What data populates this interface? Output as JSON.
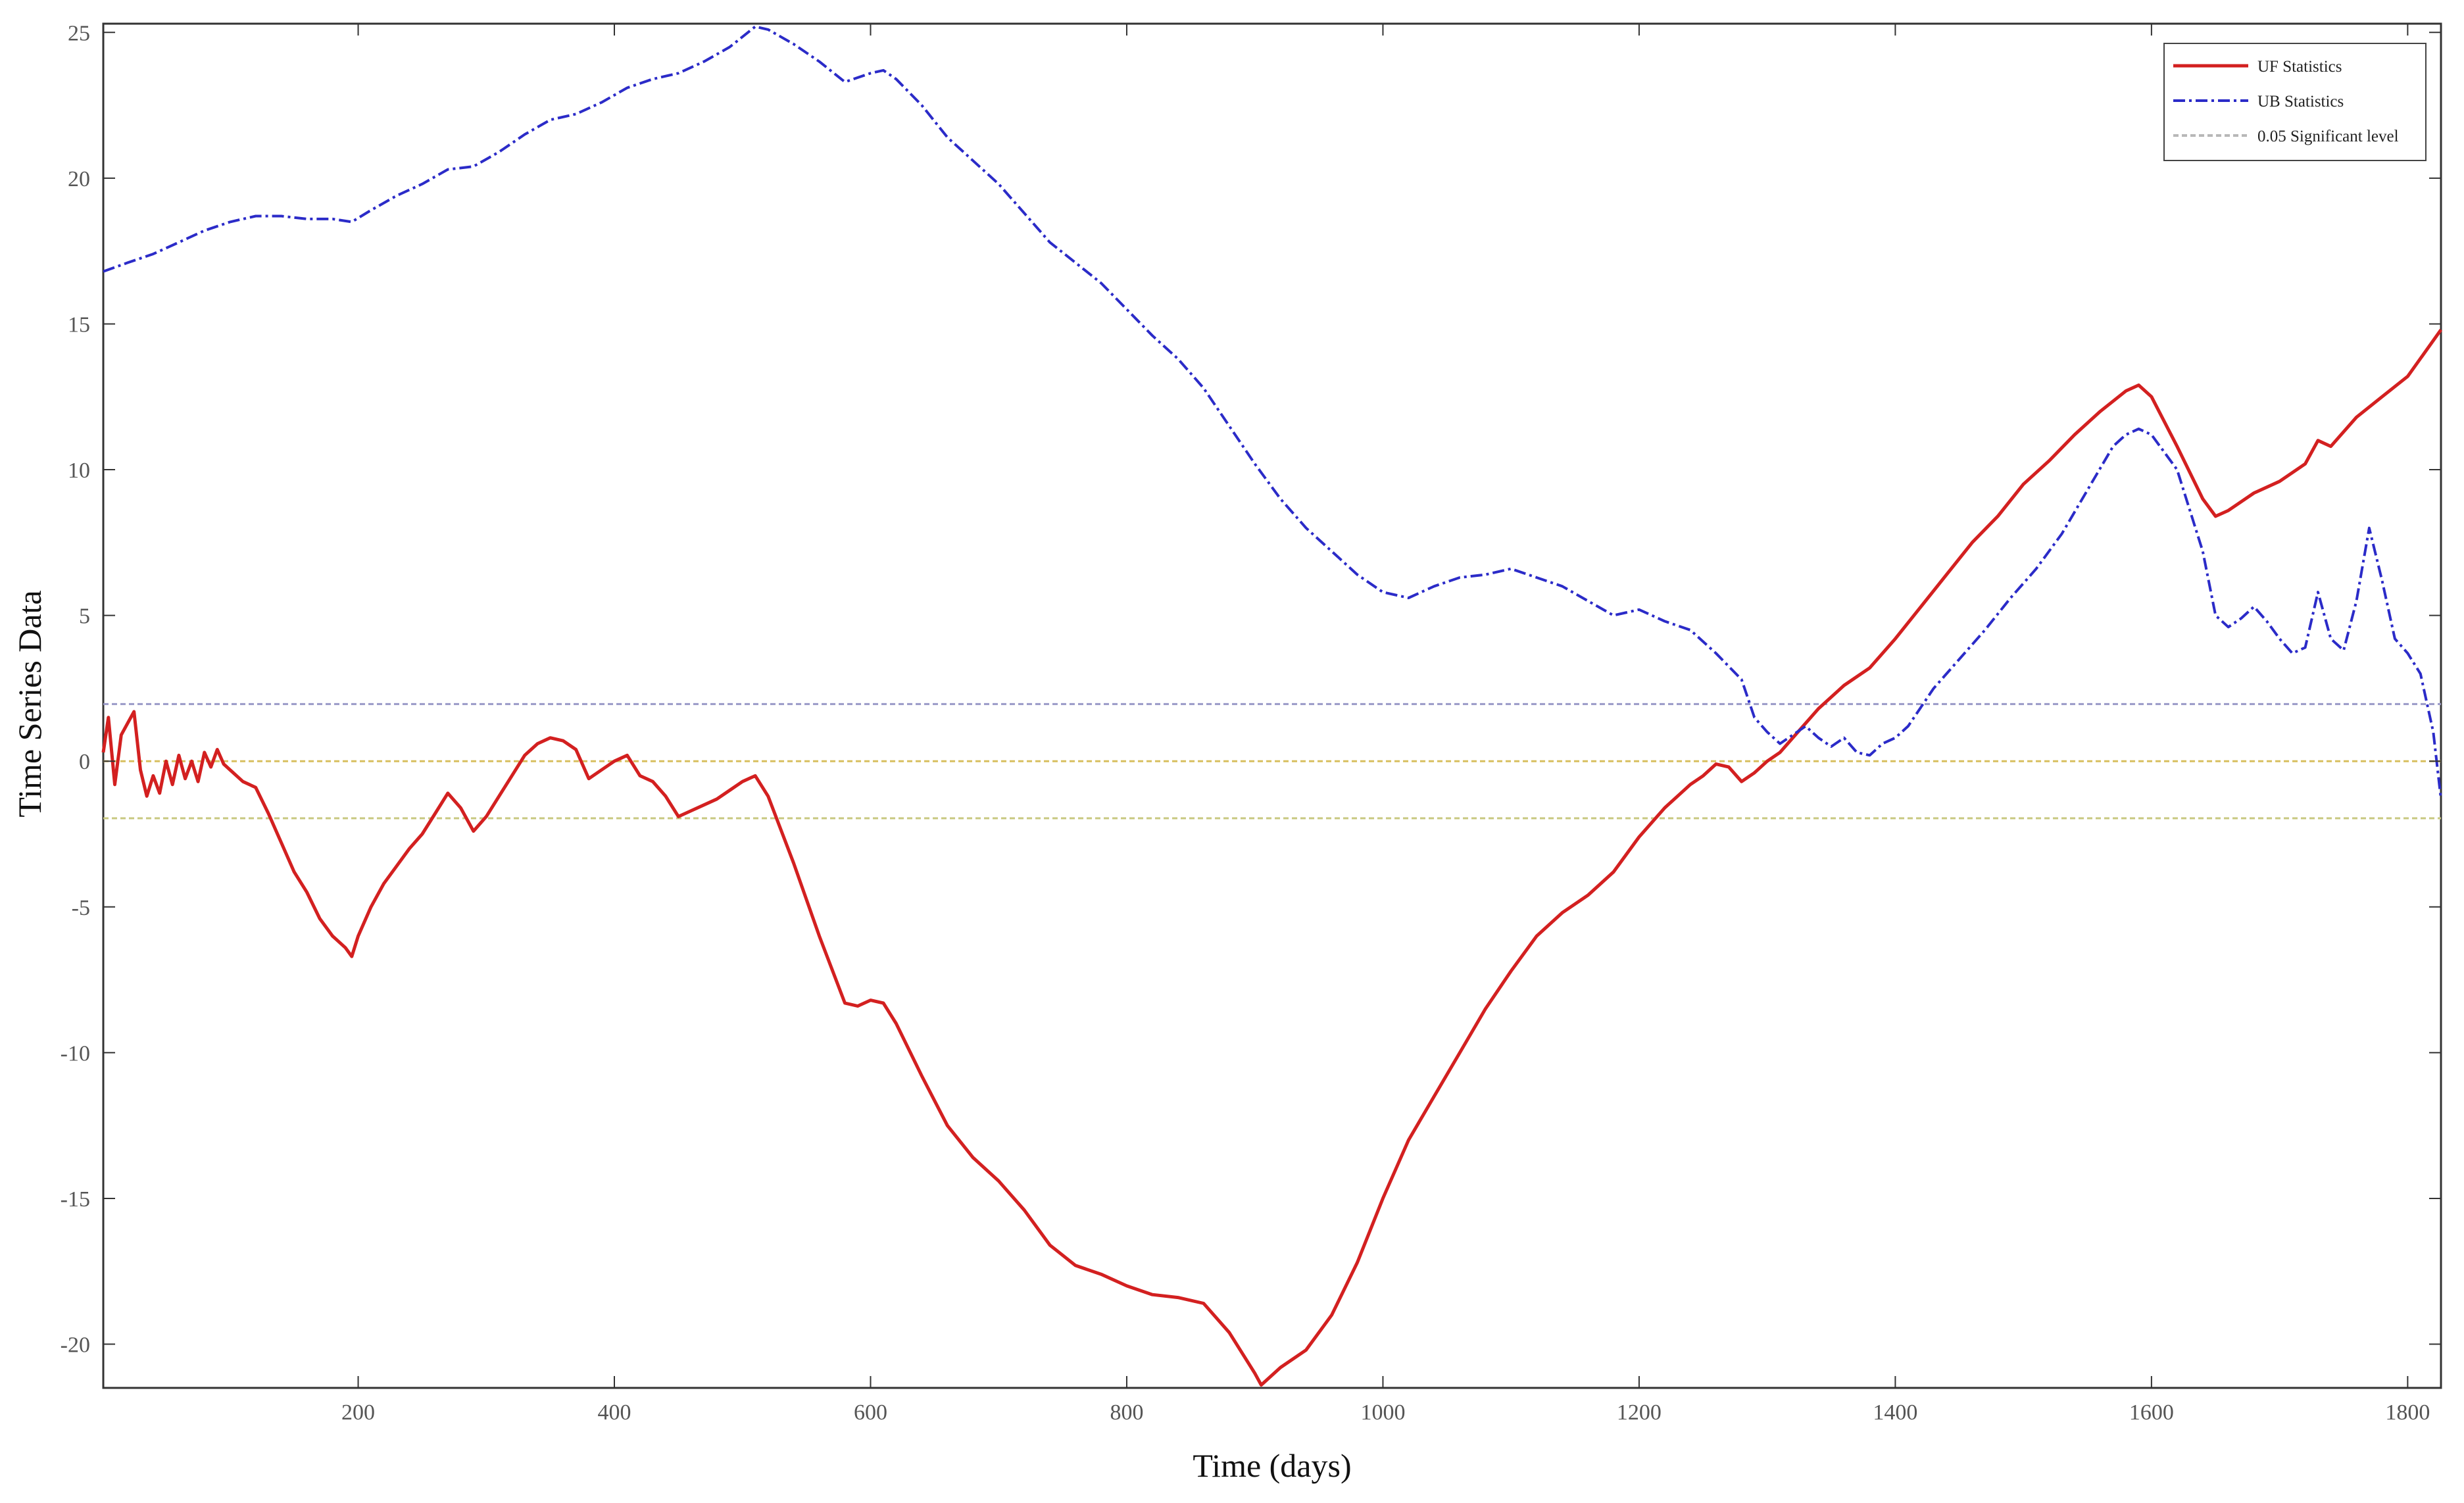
{
  "chart_data": {
    "type": "line",
    "title": "",
    "xlabel": "Time (days)",
    "ylabel": "Time Series Data",
    "xlim": [
      1,
      1826
    ],
    "ylim": [
      -21.5,
      25.3
    ],
    "x_ticks": [
      200,
      400,
      600,
      800,
      1000,
      1200,
      1400,
      1600,
      1800
    ],
    "y_ticks": [
      -20,
      -15,
      -10,
      -5,
      0,
      5,
      10,
      15,
      20,
      25
    ],
    "grid": false,
    "legend_position": "top-right",
    "reference_lines": [
      {
        "y": 1.96,
        "color": "#9a9ac8"
      },
      {
        "y": 0,
        "color": "#d8c060"
      },
      {
        "y": -1.96,
        "color": "#c8c880"
      }
    ],
    "series": [
      {
        "name": "UF Statistics",
        "color": "#d32020",
        "style": "solid",
        "points": [
          [
            1,
            0.3
          ],
          [
            5,
            1.5
          ],
          [
            10,
            -0.8
          ],
          [
            15,
            0.9
          ],
          [
            20,
            1.3
          ],
          [
            25,
            1.7
          ],
          [
            30,
            -0.3
          ],
          [
            35,
            -1.2
          ],
          [
            40,
            -0.5
          ],
          [
            45,
            -1.1
          ],
          [
            50,
            0
          ],
          [
            55,
            -0.8
          ],
          [
            60,
            0.2
          ],
          [
            65,
            -0.6
          ],
          [
            70,
            0
          ],
          [
            75,
            -0.7
          ],
          [
            80,
            0.3
          ],
          [
            85,
            -0.2
          ],
          [
            90,
            0.4
          ],
          [
            95,
            -0.1
          ],
          [
            100,
            -0.3
          ],
          [
            110,
            -0.7
          ],
          [
            120,
            -0.9
          ],
          [
            130,
            -1.8
          ],
          [
            140,
            -2.8
          ],
          [
            150,
            -3.8
          ],
          [
            160,
            -4.5
          ],
          [
            170,
            -5.4
          ],
          [
            180,
            -6.0
          ],
          [
            190,
            -6.4
          ],
          [
            195,
            -6.7
          ],
          [
            200,
            -6.0
          ],
          [
            210,
            -5.0
          ],
          [
            220,
            -4.2
          ],
          [
            230,
            -3.6
          ],
          [
            240,
            -3.0
          ],
          [
            250,
            -2.5
          ],
          [
            260,
            -1.8
          ],
          [
            270,
            -1.1
          ],
          [
            280,
            -1.6
          ],
          [
            290,
            -2.4
          ],
          [
            300,
            -1.9
          ],
          [
            310,
            -1.2
          ],
          [
            320,
            -0.5
          ],
          [
            330,
            0.2
          ],
          [
            340,
            0.6
          ],
          [
            350,
            0.8
          ],
          [
            360,
            0.7
          ],
          [
            370,
            0.4
          ],
          [
            380,
            -0.6
          ],
          [
            390,
            -0.3
          ],
          [
            400,
            0
          ],
          [
            410,
            0.2
          ],
          [
            420,
            -0.5
          ],
          [
            430,
            -0.7
          ],
          [
            440,
            -1.2
          ],
          [
            450,
            -1.9
          ],
          [
            460,
            -1.7
          ],
          [
            470,
            -1.5
          ],
          [
            480,
            -1.3
          ],
          [
            490,
            -1.0
          ],
          [
            500,
            -0.7
          ],
          [
            510,
            -0.5
          ],
          [
            520,
            -1.2
          ],
          [
            540,
            -3.5
          ],
          [
            560,
            -6.0
          ],
          [
            580,
            -8.3
          ],
          [
            590,
            -8.4
          ],
          [
            600,
            -8.2
          ],
          [
            610,
            -8.3
          ],
          [
            620,
            -9.0
          ],
          [
            640,
            -10.8
          ],
          [
            660,
            -12.5
          ],
          [
            680,
            -13.6
          ],
          [
            700,
            -14.4
          ],
          [
            720,
            -15.4
          ],
          [
            740,
            -16.6
          ],
          [
            760,
            -17.3
          ],
          [
            780,
            -17.6
          ],
          [
            800,
            -18.0
          ],
          [
            820,
            -18.3
          ],
          [
            840,
            -18.4
          ],
          [
            860,
            -18.6
          ],
          [
            880,
            -19.6
          ],
          [
            900,
            -21.0
          ],
          [
            905,
            -21.4
          ],
          [
            920,
            -20.8
          ],
          [
            940,
            -20.2
          ],
          [
            960,
            -19.0
          ],
          [
            980,
            -17.2
          ],
          [
            1000,
            -15.0
          ],
          [
            1020,
            -13.0
          ],
          [
            1040,
            -11.5
          ],
          [
            1060,
            -10.0
          ],
          [
            1080,
            -8.5
          ],
          [
            1100,
            -7.2
          ],
          [
            1120,
            -6.0
          ],
          [
            1140,
            -5.2
          ],
          [
            1160,
            -4.6
          ],
          [
            1180,
            -3.8
          ],
          [
            1200,
            -2.6
          ],
          [
            1220,
            -1.6
          ],
          [
            1240,
            -0.8
          ],
          [
            1250,
            -0.5
          ],
          [
            1260,
            -0.1
          ],
          [
            1270,
            -0.2
          ],
          [
            1280,
            -0.7
          ],
          [
            1290,
            -0.4
          ],
          [
            1300,
            0
          ],
          [
            1310,
            0.3
          ],
          [
            1320,
            0.8
          ],
          [
            1340,
            1.8
          ],
          [
            1360,
            2.6
          ],
          [
            1380,
            3.2
          ],
          [
            1400,
            4.2
          ],
          [
            1420,
            5.3
          ],
          [
            1440,
            6.4
          ],
          [
            1460,
            7.5
          ],
          [
            1480,
            8.4
          ],
          [
            1500,
            9.5
          ],
          [
            1520,
            10.3
          ],
          [
            1540,
            11.2
          ],
          [
            1560,
            12.0
          ],
          [
            1580,
            12.7
          ],
          [
            1590,
            12.9
          ],
          [
            1600,
            12.5
          ],
          [
            1620,
            10.8
          ],
          [
            1640,
            9.0
          ],
          [
            1650,
            8.4
          ],
          [
            1660,
            8.6
          ],
          [
            1680,
            9.2
          ],
          [
            1700,
            9.6
          ],
          [
            1720,
            10.2
          ],
          [
            1730,
            11.0
          ],
          [
            1740,
            10.8
          ],
          [
            1760,
            11.8
          ],
          [
            1780,
            12.5
          ],
          [
            1800,
            13.2
          ],
          [
            1826,
            14.8
          ]
        ]
      },
      {
        "name": "UB Statistics",
        "color": "#2b2bc8",
        "style": "dashdot",
        "points": [
          [
            1,
            16.8
          ],
          [
            20,
            17.1
          ],
          [
            40,
            17.4
          ],
          [
            60,
            17.8
          ],
          [
            80,
            18.2
          ],
          [
            100,
            18.5
          ],
          [
            120,
            18.7
          ],
          [
            140,
            18.7
          ],
          [
            160,
            18.6
          ],
          [
            180,
            18.6
          ],
          [
            195,
            18.5
          ],
          [
            210,
            18.9
          ],
          [
            230,
            19.4
          ],
          [
            250,
            19.8
          ],
          [
            270,
            20.3
          ],
          [
            290,
            20.4
          ],
          [
            310,
            20.9
          ],
          [
            330,
            21.5
          ],
          [
            350,
            22.0
          ],
          [
            370,
            22.2
          ],
          [
            390,
            22.6
          ],
          [
            410,
            23.1
          ],
          [
            430,
            23.4
          ],
          [
            450,
            23.6
          ],
          [
            470,
            24.0
          ],
          [
            490,
            24.5
          ],
          [
            510,
            25.2
          ],
          [
            520,
            25.1
          ],
          [
            540,
            24.6
          ],
          [
            560,
            24.0
          ],
          [
            580,
            23.3
          ],
          [
            600,
            23.6
          ],
          [
            610,
            23.7
          ],
          [
            620,
            23.4
          ],
          [
            640,
            22.5
          ],
          [
            660,
            21.4
          ],
          [
            680,
            20.6
          ],
          [
            700,
            19.8
          ],
          [
            720,
            18.8
          ],
          [
            740,
            17.8
          ],
          [
            760,
            17.1
          ],
          [
            780,
            16.4
          ],
          [
            800,
            15.5
          ],
          [
            820,
            14.6
          ],
          [
            840,
            13.8
          ],
          [
            860,
            12.8
          ],
          [
            880,
            11.5
          ],
          [
            900,
            10.2
          ],
          [
            920,
            9.0
          ],
          [
            940,
            8.0
          ],
          [
            960,
            7.2
          ],
          [
            980,
            6.4
          ],
          [
            1000,
            5.8
          ],
          [
            1020,
            5.6
          ],
          [
            1040,
            6.0
          ],
          [
            1060,
            6.3
          ],
          [
            1080,
            6.4
          ],
          [
            1100,
            6.6
          ],
          [
            1120,
            6.3
          ],
          [
            1140,
            6.0
          ],
          [
            1160,
            5.5
          ],
          [
            1180,
            5.0
          ],
          [
            1200,
            5.2
          ],
          [
            1220,
            4.8
          ],
          [
            1240,
            4.5
          ],
          [
            1260,
            3.7
          ],
          [
            1280,
            2.8
          ],
          [
            1290,
            1.5
          ],
          [
            1300,
            1.0
          ],
          [
            1310,
            0.6
          ],
          [
            1320,
            0.9
          ],
          [
            1330,
            1.2
          ],
          [
            1340,
            0.8
          ],
          [
            1350,
            0.5
          ],
          [
            1360,
            0.8
          ],
          [
            1370,
            0.3
          ],
          [
            1380,
            0.2
          ],
          [
            1390,
            0.6
          ],
          [
            1400,
            0.8
          ],
          [
            1410,
            1.2
          ],
          [
            1430,
            2.5
          ],
          [
            1450,
            3.5
          ],
          [
            1470,
            4.5
          ],
          [
            1490,
            5.6
          ],
          [
            1510,
            6.6
          ],
          [
            1530,
            7.8
          ],
          [
            1550,
            9.3
          ],
          [
            1570,
            10.8
          ],
          [
            1580,
            11.2
          ],
          [
            1590,
            11.4
          ],
          [
            1600,
            11.2
          ],
          [
            1620,
            10.0
          ],
          [
            1640,
            7.2
          ],
          [
            1650,
            5.0
          ],
          [
            1660,
            4.6
          ],
          [
            1670,
            4.9
          ],
          [
            1680,
            5.3
          ],
          [
            1690,
            4.8
          ],
          [
            1700,
            4.2
          ],
          [
            1710,
            3.7
          ],
          [
            1720,
            3.9
          ],
          [
            1730,
            5.8
          ],
          [
            1740,
            4.2
          ],
          [
            1750,
            3.8
          ],
          [
            1760,
            5.5
          ],
          [
            1770,
            8.0
          ],
          [
            1780,
            6.2
          ],
          [
            1790,
            4.2
          ],
          [
            1800,
            3.7
          ],
          [
            1810,
            3.0
          ],
          [
            1820,
            1.0
          ],
          [
            1826,
            -1.3
          ]
        ]
      },
      {
        "name": "0.05 Significant level",
        "color": "#b8b8b8",
        "style": "dashed",
        "points": []
      }
    ]
  }
}
